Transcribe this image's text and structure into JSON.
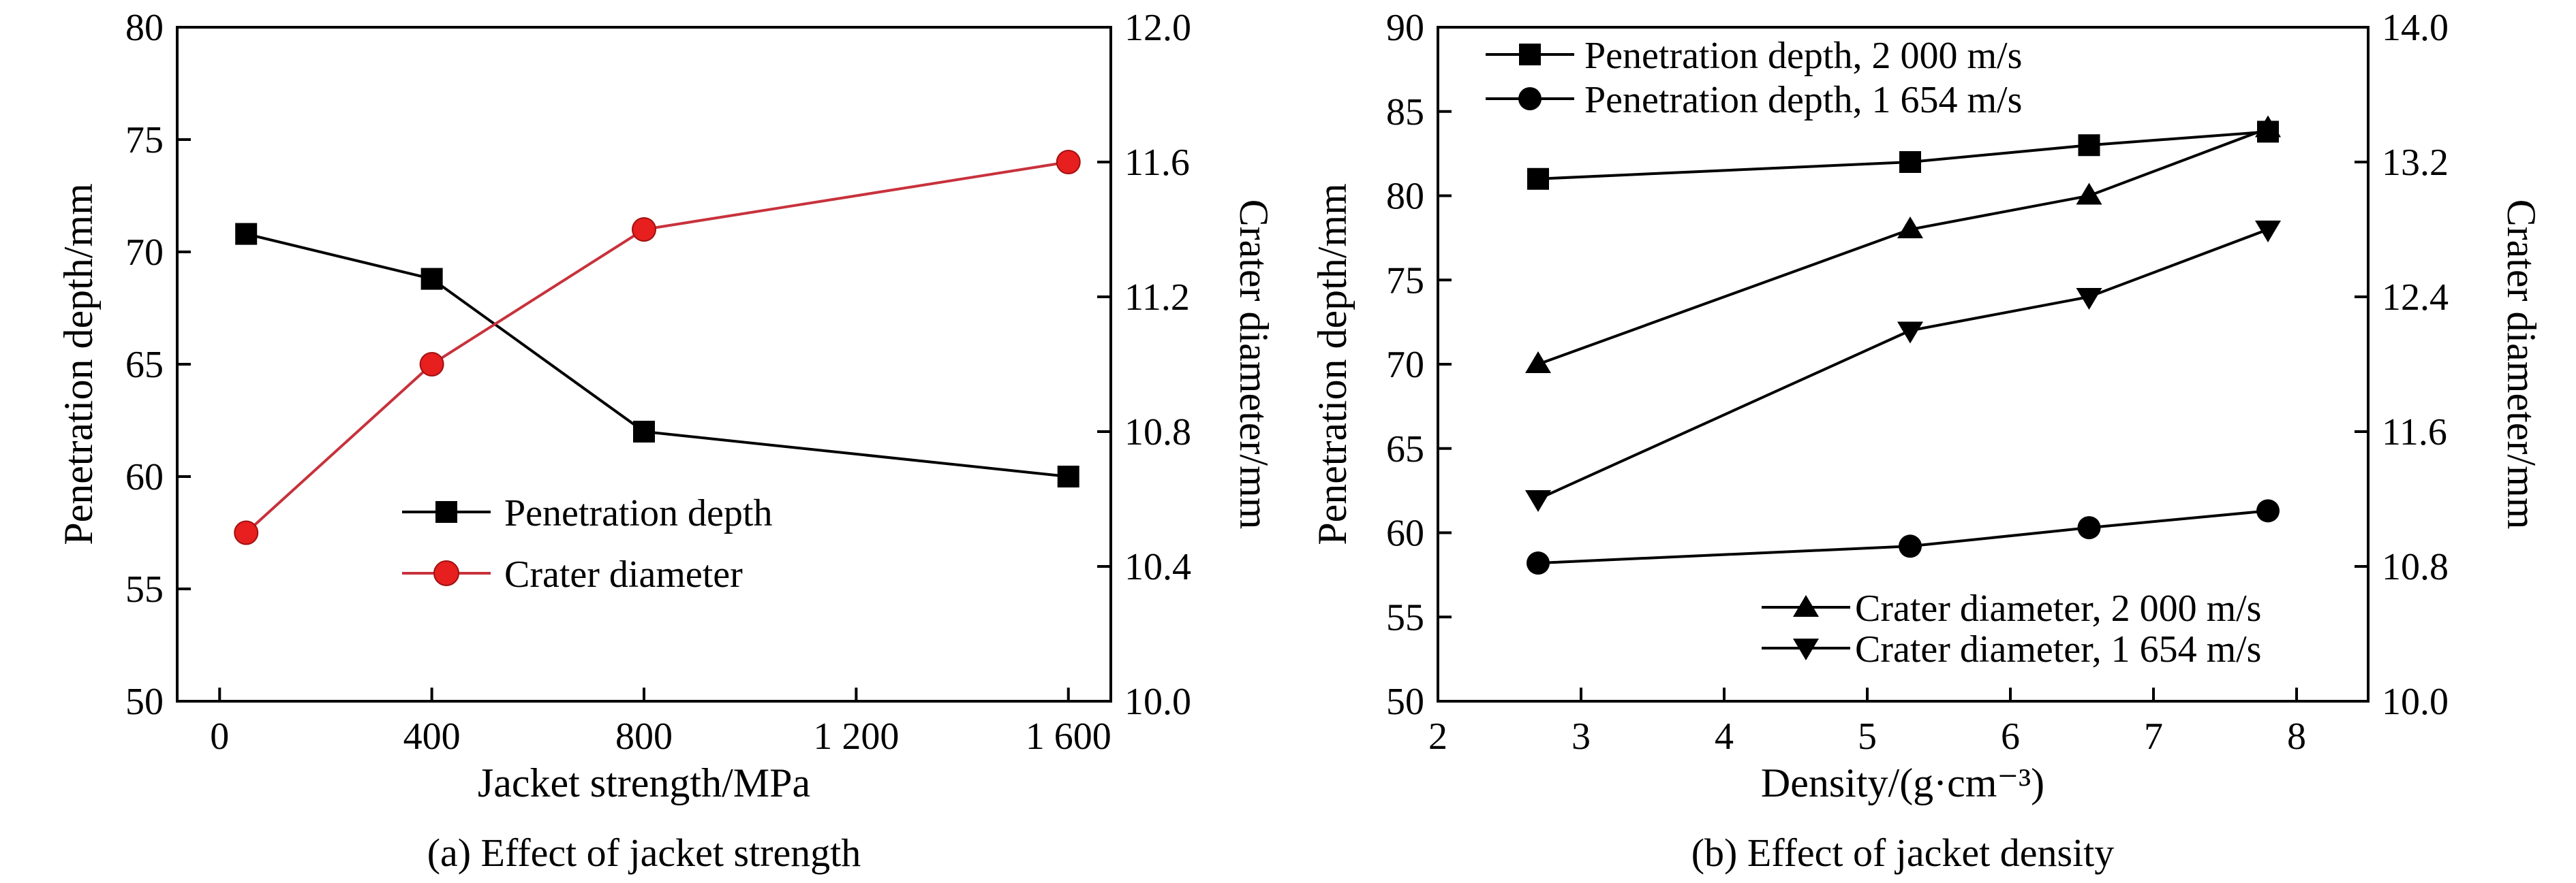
{
  "colors": {
    "black": "#000000",
    "red": "#e81f1f",
    "red_line": "#c8323c"
  },
  "chart_data": [
    {
      "type": "line",
      "caption": "(a) Effect of jacket strength",
      "xlabel": "Jacket strength/MPa",
      "ylabel": "Penetration depth/mm",
      "y2label": "Crater diameter/mm",
      "xlim": [
        -80,
        1680
      ],
      "ylim": [
        50,
        80
      ],
      "y2lim": [
        10.0,
        12.0
      ],
      "xticks": [
        0,
        400,
        800,
        1200,
        1600
      ],
      "xtick_labels": [
        "0",
        "400",
        "800",
        "1 200",
        "1 600"
      ],
      "yticks": [
        50,
        55,
        60,
        65,
        70,
        75,
        80
      ],
      "ytick_labels": [
        "50",
        "55",
        "60",
        "65",
        "70",
        "75",
        "80"
      ],
      "y2ticks": [
        10.0,
        10.4,
        10.8,
        11.2,
        11.6,
        12.0
      ],
      "y2tick_labels": [
        "10.0",
        "10.4",
        "10.8",
        "11.2",
        "11.6",
        "12.0"
      ],
      "legend_position": "center",
      "series": [
        {
          "name": "Penetration depth",
          "axis": "left",
          "marker": "square",
          "color": "#000000",
          "x": [
            50,
            400,
            800,
            1600
          ],
          "y": [
            70.8,
            68.8,
            62.0,
            60.0
          ]
        },
        {
          "name": "Crater diameter",
          "axis": "right",
          "marker": "circle",
          "color": "#e81f1f",
          "x": [
            50,
            400,
            800,
            1600
          ],
          "y": [
            10.5,
            11.0,
            11.4,
            11.6
          ]
        }
      ]
    },
    {
      "type": "line",
      "caption": "(b) Effect of jacket density",
      "xlabel": "Density/(g·cm⁻³)",
      "ylabel": "Penetration depth/mm",
      "y2label": "Crater diameter/mm",
      "xlim": [
        2,
        8.5
      ],
      "ylim": [
        50,
        90
      ],
      "y2lim": [
        10.0,
        14.0
      ],
      "xticks": [
        2,
        3,
        4,
        5,
        6,
        7,
        8
      ],
      "xtick_labels": [
        "2",
        "3",
        "4",
        "5",
        "6",
        "7",
        "8"
      ],
      "yticks": [
        50,
        55,
        60,
        65,
        70,
        75,
        80,
        85,
        90
      ],
      "ytick_labels": [
        "50",
        "55",
        "60",
        "65",
        "70",
        "75",
        "80",
        "85",
        "90"
      ],
      "y2ticks": [
        10.0,
        10.8,
        11.6,
        12.4,
        13.2,
        14.0
      ],
      "y2tick_labels": [
        "10.0",
        "10.8",
        "11.6",
        "12.4",
        "13.2",
        "14.0"
      ],
      "legend_top_position": "top-left",
      "legend_bottom_position": "bottom-right",
      "series": [
        {
          "name": "Penetration depth, 2 000 m/s",
          "axis": "left",
          "marker": "square",
          "color": "#000000",
          "x": [
            2.7,
            5.3,
            6.55,
            7.8
          ],
          "y": [
            81.0,
            82.0,
            83.0,
            83.8
          ]
        },
        {
          "name": "Penetration depth, 1 654 m/s",
          "axis": "left",
          "marker": "circle",
          "color": "#000000",
          "x": [
            2.7,
            5.3,
            6.55,
            7.8
          ],
          "y": [
            58.2,
            59.2,
            60.3,
            61.3
          ]
        },
        {
          "name": "Crater diameter, 2 000 m/s",
          "axis": "right",
          "marker": "triangle-up",
          "color": "#000000",
          "x": [
            2.7,
            5.3,
            6.55,
            7.8
          ],
          "y": [
            12.0,
            12.8,
            13.0,
            13.4
          ]
        },
        {
          "name": "Crater diameter, 1 654 m/s",
          "axis": "right",
          "marker": "triangle-down",
          "color": "#000000",
          "x": [
            2.7,
            5.3,
            6.55,
            7.8
          ],
          "y": [
            11.2,
            12.2,
            12.4,
            12.8
          ]
        }
      ]
    }
  ]
}
